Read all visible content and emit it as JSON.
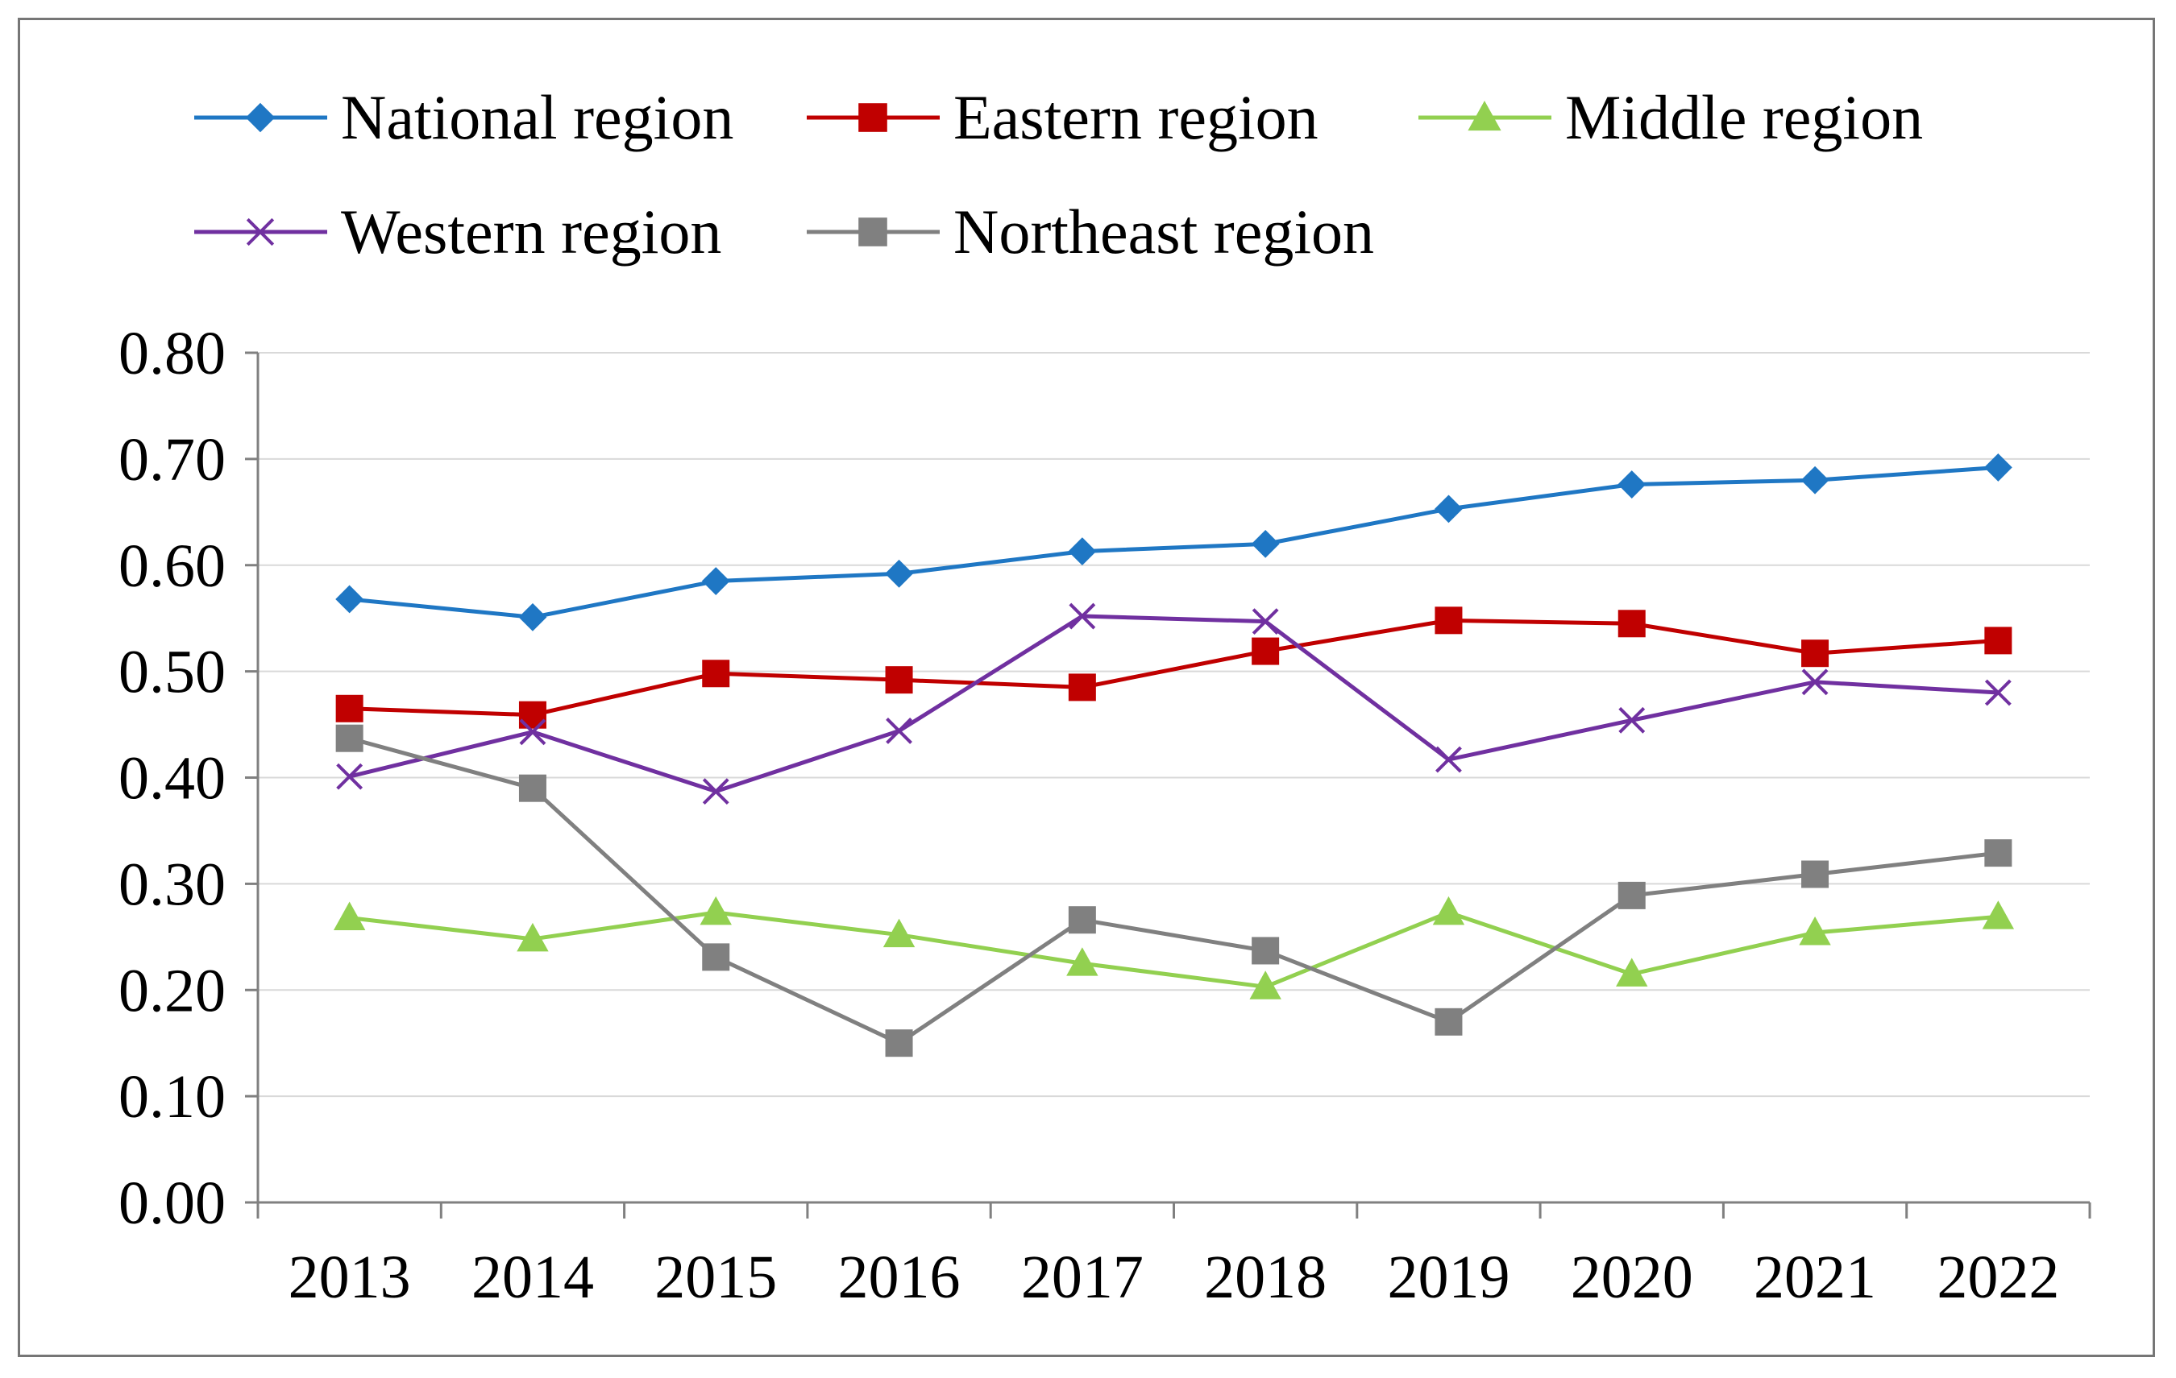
{
  "chart_data": {
    "type": "line",
    "title": "",
    "xlabel": "",
    "ylabel": "",
    "categories": [
      "2013",
      "2014",
      "2015",
      "2016",
      "2017",
      "2018",
      "2019",
      "2020",
      "2021",
      "2022"
    ],
    "ylim": [
      0,
      0.8
    ],
    "y_ticks": [
      "0.00",
      "0.10",
      "0.20",
      "0.30",
      "0.40",
      "0.50",
      "0.60",
      "0.70",
      "0.80"
    ],
    "y_tick_values": [
      0,
      0.1,
      0.2,
      0.3,
      0.4,
      0.5,
      0.6,
      0.7,
      0.8
    ],
    "grid": true,
    "legend_position": "top",
    "series": [
      {
        "name": "National region",
        "color": "#1f77c4",
        "marker": "diamond",
        "values": [
          0.568,
          0.551,
          0.585,
          0.592,
          0.613,
          0.62,
          0.653,
          0.676,
          0.68,
          0.692
        ]
      },
      {
        "name": "Eastern region",
        "color": "#c00000",
        "marker": "square",
        "values": [
          0.465,
          0.459,
          0.498,
          0.492,
          0.485,
          0.519,
          0.548,
          0.545,
          0.517,
          0.529
        ]
      },
      {
        "name": "Middle region",
        "color": "#92d050",
        "marker": "triangle",
        "values": [
          0.268,
          0.248,
          0.273,
          0.252,
          0.225,
          0.203,
          0.273,
          0.215,
          0.254,
          0.269
        ]
      },
      {
        "name": "Western region",
        "color": "#7030a0",
        "marker": "x",
        "values": [
          0.401,
          0.443,
          0.387,
          0.444,
          0.552,
          0.547,
          0.417,
          0.454,
          0.49,
          0.48
        ]
      },
      {
        "name": "Northeast region",
        "color": "#808080",
        "marker": "square",
        "values": [
          0.437,
          0.39,
          0.231,
          0.15,
          0.266,
          0.237,
          0.17,
          0.289,
          0.309,
          0.329
        ]
      }
    ]
  }
}
